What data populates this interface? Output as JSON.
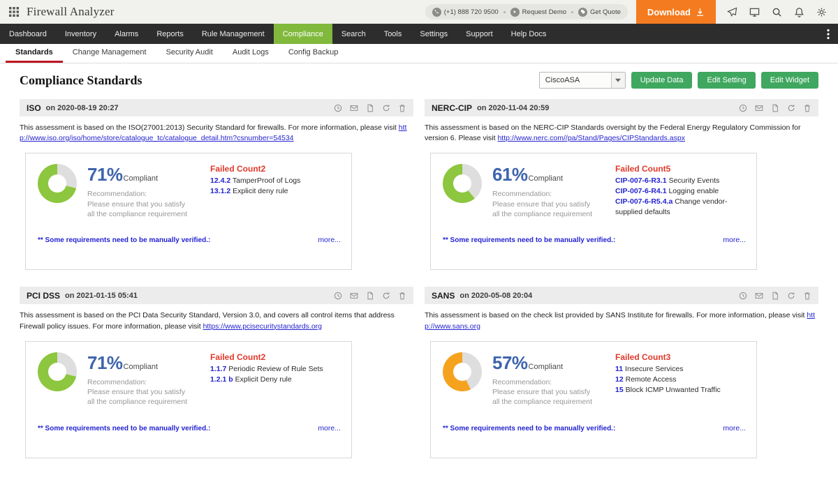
{
  "topbar": {
    "app_title": "Firewall Analyzer",
    "phone": "(+1) 888 720 9500",
    "request_demo": "Request Demo",
    "get_quote": "Get Quote",
    "download": "Download"
  },
  "nav": {
    "items": [
      "Dashboard",
      "Inventory",
      "Alarms",
      "Reports",
      "Rule Management",
      "Compliance",
      "Search",
      "Tools",
      "Settings",
      "Support",
      "Help Docs"
    ],
    "active": "Compliance"
  },
  "subnav": {
    "items": [
      "Standards",
      "Change Management",
      "Security Audit",
      "Audit Logs",
      "Config Backup"
    ],
    "active": "Standards"
  },
  "toolbar": {
    "title": "Compliance Standards",
    "device": "CiscoASA",
    "update_data": "Update Data",
    "edit_setting": "Edit Setting",
    "edit_widget": "Edit Widget"
  },
  "card_common": {
    "compliant_label": "Compliant",
    "rec_title": "Recommendation:",
    "rec_text": "Please ensure that you satisfy all the compliance requirement",
    "failed_label": "Failed Count",
    "footnote": "** Some requirements need to be manually verified.:",
    "more_label": "more..."
  },
  "colors": {
    "nav_active_green": "#80b93c",
    "button_green": "#3fa75f",
    "download_orange": "#f47b20",
    "failed_red": "#e0392b",
    "link_blue": "#2323d1",
    "percent_blue": "#3e64ad",
    "donut_rest": "#dedede"
  },
  "cards": [
    {
      "name": "ISO",
      "date": "on 2020-08-19 20:27",
      "description": "This assessment is based on the ISO(27001:2013) Security Standard for firewalls. For more information, please visit",
      "link": "http://www.iso.org/iso/home/store/catalogue_tc/catalogue_detail.htm?csnumber=54534",
      "percent": 71,
      "percent_label": "71%",
      "failed_count": 2,
      "donut_color": "#8dc63f",
      "failed_items": [
        {
          "code": "12.4.2",
          "text": "TamperProof of Logs"
        },
        {
          "code": "13.1.2",
          "text": "Explicit deny rule"
        }
      ]
    },
    {
      "name": "NERC-CIP",
      "date": "on 2020-11-04 20:59",
      "description": "This assessment is based on the NERC-CIP Standards oversight by the Federal Energy Regulatory Commission for version 6. Please visit",
      "link": "http://www.nerc.com//pa/Stand/Pages/CIPStandards.aspx",
      "percent": 61,
      "percent_label": "61%",
      "failed_count": 5,
      "donut_color": "#8dc63f",
      "failed_items": [
        {
          "code": "CIP-007-6-R3.1",
          "text": "Security Events"
        },
        {
          "code": "CIP-007-6-R4.1",
          "text": "Logging enable"
        },
        {
          "code": "CIP-007-6-R5.4.a",
          "text": "Change vendor-supplied defaults"
        }
      ]
    },
    {
      "name": "PCI DSS",
      "date": "on 2021-01-15 05:41",
      "description": "This assessment is based on the PCI Data Security Standard, Version 3.0, and covers all control items that address Firewall policy issues. For more information, please visit",
      "link": "https://www.pcisecuritystandards.org",
      "percent": 71,
      "percent_label": "71%",
      "failed_count": 2,
      "donut_color": "#8dc63f",
      "failed_items": [
        {
          "code": "1.1.7",
          "text": "Periodic Review of Rule Sets"
        },
        {
          "code": "1.2.1 b",
          "text": "Explicit Deny rule"
        }
      ]
    },
    {
      "name": "SANS",
      "date": "on 2020-05-08 20:04",
      "description": "This assessment is based on the check list provided by SANS Institute for firewalls. For more information, please visit",
      "link": "http://www.sans.org",
      "percent": 57,
      "percent_label": "57%",
      "failed_count": 3,
      "donut_color": "#f5a31f",
      "failed_items": [
        {
          "code": "11",
          "text": "Insecure Services"
        },
        {
          "code": "12",
          "text": "Remote Access"
        },
        {
          "code": "15",
          "text": "Block ICMP Unwanted Traffic"
        }
      ]
    }
  ]
}
